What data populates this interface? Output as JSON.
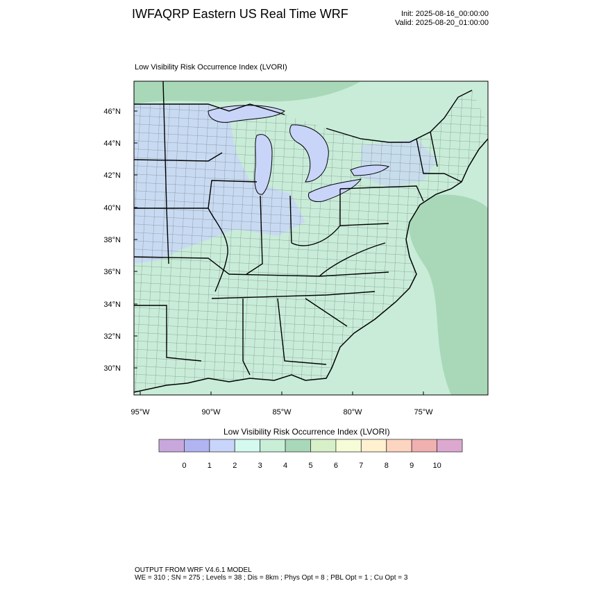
{
  "header": {
    "title": "IWFAQRP Eastern US Real Time WRF",
    "init": "Init: 2025-08-16_00:00:00",
    "valid": "Valid: 2025-08-20_01:00:00"
  },
  "map": {
    "subtitle": "Low Visibility Risk Occurrence Index   (LVORI)",
    "lat_labels": [
      "46°N",
      "44°N",
      "42°N",
      "40°N",
      "38°N",
      "36°N",
      "34°N",
      "32°N",
      "30°N"
    ],
    "lon_labels": [
      "95°W",
      "90°W",
      "85°W",
      "80°W",
      "75°W"
    ],
    "colors": {
      "land": "#c8ecd8",
      "lake": "#c8d4f8",
      "ocean": "#c8ecd8",
      "border": "#000000"
    }
  },
  "colorbar": {
    "title": "Low Visibility Risk Occurrence Index  (LVORI)",
    "labels": [
      "0",
      "1",
      "2",
      "3",
      "4",
      "5",
      "6",
      "7",
      "8",
      "9",
      "10"
    ],
    "colors": [
      "#c8a8dc",
      "#b0b4f0",
      "#c8d4fa",
      "#d4faf0",
      "#c8eed8",
      "#a8d8b8",
      "#d8f0c8",
      "#f6fcd8",
      "#fff0d0",
      "#fcd4c0",
      "#f0b0b0",
      "#dca8d0"
    ]
  },
  "footer": {
    "line1": "OUTPUT FROM WRF V4.6.1 MODEL",
    "line2": "WE = 310 ; SN = 275 ; Levels = 38 ; Dis = 8km ; Phys Opt = 8 ; PBL Opt = 1 ; Cu Opt = 3"
  }
}
